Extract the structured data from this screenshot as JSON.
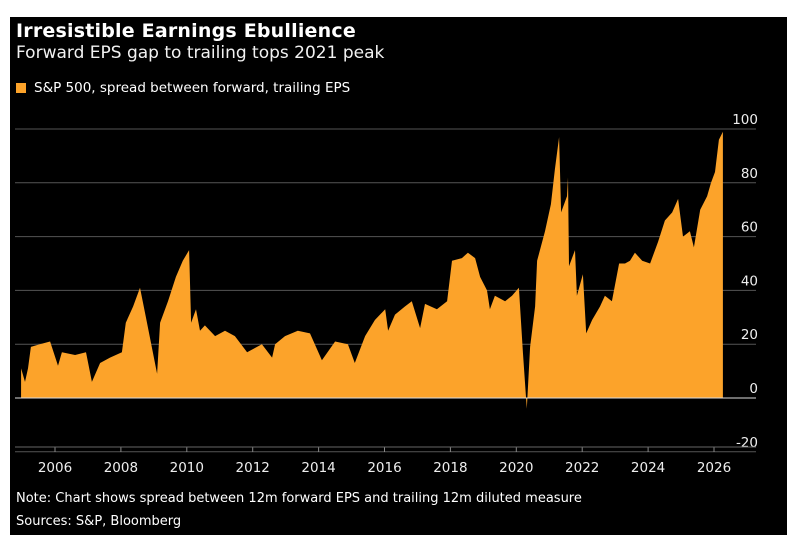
{
  "header": {
    "title": "Irresistible Earnings Ebullience",
    "subtitle": "Forward EPS gap to trailing tops 2021 peak"
  },
  "footer": {
    "note": "Note: Chart shows spread between 12m forward EPS and trailing 12m diluted measure",
    "sources": "Sources: S&P, Bloomberg"
  },
  "chart_data": {
    "type": "area",
    "title": "Irresistible Earnings Ebullience",
    "subtitle": "Forward EPS gap to trailing tops 2021 peak",
    "legend_position": "top-left",
    "grid": true,
    "series": [
      {
        "name": "S&P 500, spread between forward, trailing EPS",
        "color": "#fca32a",
        "x": [
          2004.97,
          2005.09,
          2005.18,
          2005.27,
          2005.54,
          2005.85,
          2006.09,
          2006.21,
          2006.61,
          2006.94,
          2007.12,
          2007.37,
          2007.67,
          2008.03,
          2008.15,
          2008.37,
          2008.58,
          2008.76,
          2009.1,
          2009.19,
          2009.43,
          2009.67,
          2009.88,
          2010.07,
          2010.13,
          2010.28,
          2010.4,
          2010.55,
          2010.86,
          2011.16,
          2011.46,
          2011.83,
          2012.28,
          2012.59,
          2012.68,
          2012.98,
          2013.37,
          2013.74,
          2014.1,
          2014.5,
          2014.89,
          2015.1,
          2015.41,
          2015.71,
          2016.02,
          2016.11,
          2016.32,
          2016.62,
          2016.83,
          2017.08,
          2017.23,
          2017.59,
          2017.9,
          2018.05,
          2018.35,
          2018.53,
          2018.75,
          2018.9,
          2019.11,
          2019.2,
          2019.35,
          2019.66,
          2019.87,
          2020.08,
          2020.2,
          2020.32,
          2020.42,
          2020.57,
          2020.63,
          2020.87,
          2021.05,
          2021.17,
          2021.3,
          2021.36,
          2021.54,
          2021.57,
          2021.6,
          2021.78,
          2021.84,
          2022.02,
          2022.12,
          2022.3,
          2022.54,
          2022.69,
          2022.9,
          2023.12,
          2023.3,
          2023.45,
          2023.6,
          2023.82,
          2024.06,
          2024.3,
          2024.51,
          2024.73,
          2024.91,
          2025.06,
          2025.27,
          2025.39,
          2025.58,
          2025.79,
          2025.91,
          2026.03,
          2026.15,
          2026.27
        ],
        "values": [
          11,
          6,
          11,
          19,
          20,
          21,
          12,
          17,
          16,
          17,
          6,
          13,
          15,
          17,
          28,
          34,
          41,
          30,
          9,
          28,
          36,
          45,
          51,
          55,
          28,
          33,
          25,
          27,
          23,
          25,
          23,
          17,
          20,
          15,
          20,
          23,
          25,
          24,
          14,
          21,
          20,
          13,
          23,
          29,
          33,
          25,
          31,
          34,
          36,
          26,
          35,
          33,
          36,
          51,
          52,
          54,
          52,
          45,
          40,
          33,
          38,
          36,
          38,
          41,
          17,
          -4,
          19,
          34,
          51,
          62,
          72,
          85,
          97,
          69,
          75,
          82,
          49,
          55,
          38,
          46,
          24,
          29,
          34,
          38,
          36,
          50,
          50,
          51,
          54,
          51,
          50,
          58,
          66,
          69,
          74,
          60,
          62,
          56,
          70,
          75,
          80,
          84,
          96,
          99
        ]
      }
    ],
    "x_ticks": [
      "2006",
      "2008",
      "2010",
      "2012",
      "2014",
      "2016",
      "2018",
      "2020",
      "2022",
      "2024",
      "2026"
    ],
    "y_ticks": [
      "100",
      "80",
      "60",
      "40",
      "20",
      "0",
      "-20"
    ],
    "xlim": [
      2004.95,
      2027.3
    ],
    "ylim": [
      -25,
      100
    ],
    "y_axis_position": "right"
  }
}
